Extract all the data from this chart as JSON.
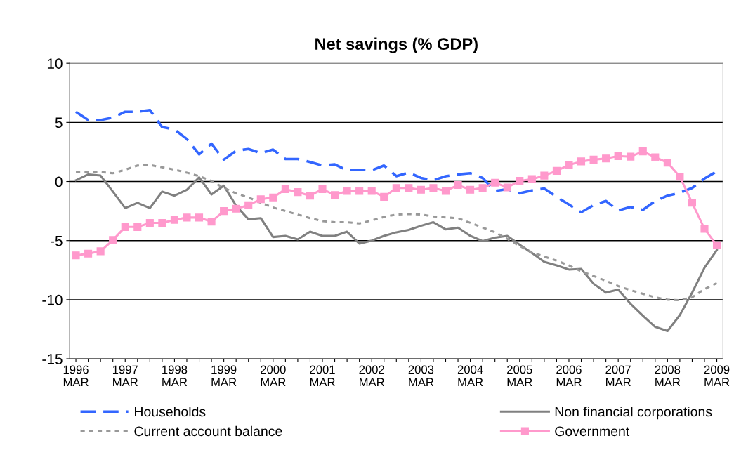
{
  "chart_data": {
    "type": "line",
    "title": "Net savings (% GDP)",
    "categories": [
      "1996\nMAR",
      null,
      null,
      null,
      "1997\nMAR",
      null,
      null,
      null,
      "1998\nMAR",
      null,
      null,
      null,
      "1999\nMAR",
      null,
      null,
      null,
      "2000\nMAR",
      null,
      null,
      null,
      "2001\nMAR",
      null,
      null,
      null,
      "2002\nMAR",
      null,
      null,
      null,
      "2003\nMAR",
      null,
      null,
      null,
      "2004\nMAR",
      null,
      null,
      null,
      "2005\nMAR",
      null,
      null,
      null,
      "2006\nMAR",
      null,
      null,
      null,
      "2007\nMAR",
      null,
      null,
      null,
      "2008\nMAR",
      null,
      null,
      null,
      "2009\nMAR"
    ],
    "ylim": [
      -15,
      10
    ],
    "yticks": [
      -15,
      -10,
      -5,
      0,
      5,
      10
    ],
    "grid": "y",
    "legend": "bottom",
    "series": [
      {
        "name": "Households",
        "color": "#3366ff",
        "line_style": "dashed",
        "marker": "none",
        "values": [
          5.9,
          5.2,
          5.2,
          5.4,
          5.9,
          5.9,
          6.05,
          4.6,
          4.4,
          3.6,
          2.3,
          3.2,
          1.85,
          2.6,
          2.75,
          2.4,
          2.7,
          1.9,
          1.9,
          1.65,
          1.35,
          1.45,
          0.95,
          1.0,
          0.95,
          1.35,
          0.45,
          0.75,
          0.3,
          0.1,
          0.45,
          0.6,
          0.7,
          0.3,
          -0.8,
          -0.65,
          -1.0,
          -0.75,
          -0.6,
          -1.3,
          -1.95,
          -2.6,
          -2.0,
          -1.65,
          -2.45,
          -2.15,
          -2.4,
          -1.65,
          -1.2,
          -0.95,
          -0.55,
          0.25,
          0.85
        ]
      },
      {
        "name": "Non financial corporations",
        "color": "#808080",
        "line_style": "solid",
        "marker": "none",
        "values": [
          0.1,
          0.6,
          0.5,
          -0.85,
          -2.25,
          -1.8,
          -2.25,
          -0.85,
          -1.2,
          -0.7,
          0.35,
          -1.1,
          -0.35,
          -2.05,
          -3.2,
          -3.1,
          -4.7,
          -4.6,
          -4.9,
          -4.25,
          -4.6,
          -4.6,
          -4.25,
          -5.25,
          -5.0,
          -4.6,
          -4.3,
          -4.1,
          -3.75,
          -3.45,
          -4.05,
          -3.9,
          -4.6,
          -5.05,
          -4.75,
          -4.6,
          -5.35,
          -6.05,
          -6.8,
          -7.1,
          -7.45,
          -7.4,
          -8.65,
          -9.4,
          -9.15,
          -10.35,
          -11.35,
          -12.3,
          -12.65,
          -11.3,
          -9.4,
          -7.3,
          -5.8
        ]
      },
      {
        "name": "Current account balance",
        "color": "#999999",
        "line_style": "dotted",
        "marker": "none",
        "values": [
          0.8,
          0.8,
          0.8,
          0.7,
          1.0,
          1.35,
          1.4,
          1.2,
          1.0,
          0.75,
          0.45,
          0.05,
          -0.55,
          -1.0,
          -1.35,
          -1.8,
          -2.2,
          -2.5,
          -2.8,
          -3.1,
          -3.35,
          -3.45,
          -3.45,
          -3.55,
          -3.3,
          -3.0,
          -2.8,
          -2.75,
          -2.8,
          -2.95,
          -3.05,
          -3.1,
          -3.5,
          -3.9,
          -4.3,
          -4.85,
          -5.45,
          -6.0,
          -6.35,
          -6.7,
          -7.1,
          -7.6,
          -8.0,
          -8.4,
          -8.85,
          -9.2,
          -9.5,
          -9.8,
          -10.0,
          -10.05,
          -9.8,
          -9.1,
          -8.6
        ]
      },
      {
        "name": "Government",
        "color": "#ff99cc",
        "line_style": "solid",
        "marker": "square",
        "values": [
          -6.25,
          -6.1,
          -5.9,
          -4.95,
          -3.85,
          -3.85,
          -3.5,
          -3.5,
          -3.25,
          -3.05,
          -3.05,
          -3.4,
          -2.5,
          -2.3,
          -2.0,
          -1.5,
          -1.35,
          -0.65,
          -0.9,
          -1.2,
          -0.65,
          -1.15,
          -0.8,
          -0.8,
          -0.8,
          -1.3,
          -0.55,
          -0.55,
          -0.7,
          -0.55,
          -0.8,
          -0.3,
          -0.7,
          -0.55,
          -0.1,
          -0.5,
          0.05,
          0.2,
          0.5,
          0.9,
          1.4,
          1.7,
          1.85,
          1.95,
          2.15,
          2.1,
          2.55,
          2.05,
          1.6,
          0.4,
          -1.8,
          -4.0,
          -5.4
        ]
      }
    ]
  }
}
